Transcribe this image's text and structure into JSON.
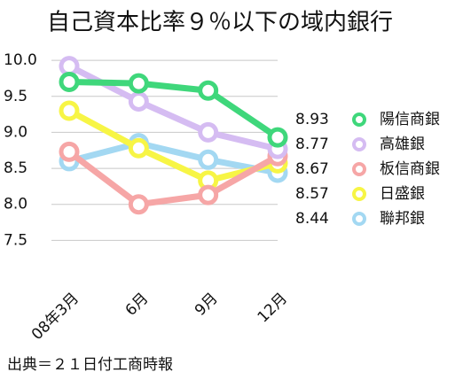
{
  "chart_data": {
    "type": "line",
    "title": "自己資本比率９％以下の域内銀行",
    "categories": [
      "08年3月",
      "6月",
      "9月",
      "12月"
    ],
    "series": [
      {
        "name": "陽信商銀",
        "color": "#3fd77b",
        "values": [
          9.7,
          9.68,
          9.58,
          8.93
        ]
      },
      {
        "name": "高雄銀",
        "color": "#d5bcf2",
        "values": [
          9.92,
          9.43,
          9.0,
          8.77
        ]
      },
      {
        "name": "板信商銀",
        "color": "#f6a6a6",
        "values": [
          8.73,
          8.0,
          8.13,
          8.67
        ]
      },
      {
        "name": "日盛銀",
        "color": "#f7f545",
        "values": [
          9.3,
          8.78,
          8.33,
          8.57
        ]
      },
      {
        "name": "聯邦銀",
        "color": "#a3d8f2",
        "values": [
          8.6,
          8.85,
          8.62,
          8.44
        ]
      }
    ],
    "ylim": [
      7.0,
      10.1
    ],
    "yticks": [
      {
        "value": 10,
        "label": "10.0"
      },
      9.5,
      {
        "value": 9,
        "label": "9.0"
      },
      8.5,
      {
        "value": 8,
        "label": "8.0"
      },
      7.5
    ],
    "grid": true,
    "source": "出典＝２１日付工商時報"
  }
}
